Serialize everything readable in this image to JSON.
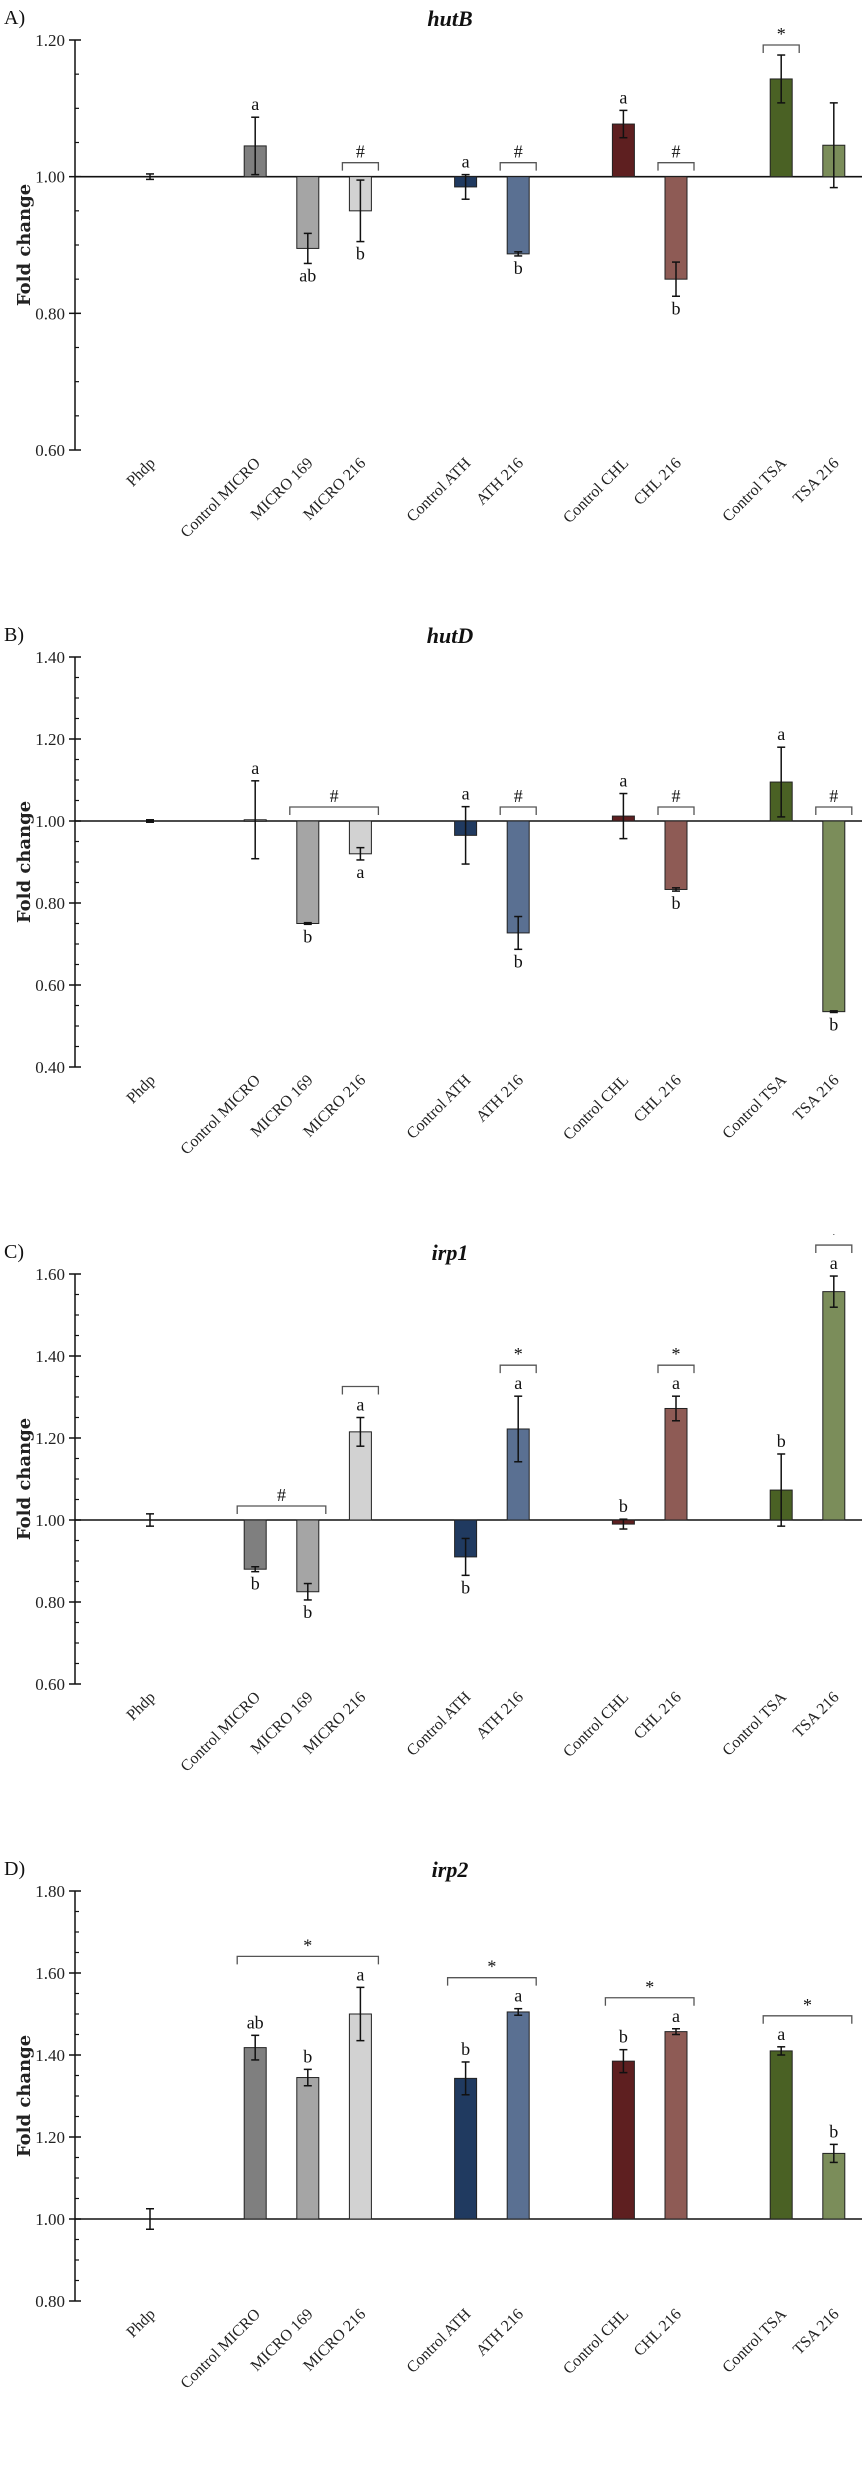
{
  "chart_data": [
    {
      "type": "bar",
      "panel_label": "A)",
      "title": "hutB",
      "ylabel": "Fold change",
      "xlabel": "",
      "ylim": [
        0.6,
        1.2
      ],
      "yticks": [
        "0.60",
        "0.80",
        "1.00",
        "1.20"
      ],
      "baseline": 1.0,
      "grid": false,
      "categories": [
        "Phdp",
        "Control MICRO",
        "MICRO 169",
        "MICRO 216",
        "Control ATH",
        "ATH 216",
        "Control CHL",
        "CHL 216",
        "Control TSA",
        "TSA 216"
      ],
      "values": [
        1.0,
        1.045,
        0.895,
        0.95,
        0.985,
        0.887,
        1.077,
        0.85,
        1.143,
        1.046
      ],
      "errors": [
        0.004,
        0.042,
        0.022,
        0.045,
        0.018,
        0.003,
        0.02,
        0.025,
        0.035,
        0.062
      ],
      "letters": [
        {
          "bar": 1,
          "text": "a",
          "pos": "above"
        },
        {
          "bar": 2,
          "text": "ab",
          "pos": "below"
        },
        {
          "bar": 3,
          "text": "b",
          "pos": "below"
        },
        {
          "bar": 4,
          "text": "a",
          "pos": "above"
        },
        {
          "bar": 5,
          "text": "b",
          "pos": "below"
        },
        {
          "bar": 6,
          "text": "a",
          "pos": "above"
        },
        {
          "bar": 7,
          "text": "b",
          "pos": "below"
        }
      ],
      "brackets": [
        {
          "from": 3,
          "to": 3,
          "symbol": "#"
        },
        {
          "from": 5,
          "to": 5,
          "symbol": "#"
        },
        {
          "from": 7,
          "to": 7,
          "symbol": "#"
        },
        {
          "from": 8,
          "to": 8,
          "symbol": "*"
        }
      ]
    },
    {
      "type": "bar",
      "panel_label": "B)",
      "title": "hutD",
      "ylabel": "Fold change",
      "xlabel": "",
      "ylim": [
        0.4,
        1.4
      ],
      "yticks": [
        "0.40",
        "0.60",
        "0.80",
        "1.00",
        "1.20",
        "1.40"
      ],
      "baseline": 1.0,
      "grid": false,
      "categories": [
        "Phdp",
        "Control MICRO",
        "MICRO 169",
        "MICRO 216",
        "Control ATH",
        "ATH 216",
        "Control CHL",
        "CHL 216",
        "Control TSA",
        "TSA 216"
      ],
      "values": [
        1.0,
        1.003,
        0.75,
        0.92,
        0.965,
        0.727,
        1.012,
        0.833,
        1.095,
        0.535
      ],
      "errors": [
        0.003,
        0.095,
        0.002,
        0.015,
        0.07,
        0.04,
        0.055,
        0.004,
        0.085,
        0.002
      ],
      "letters": [
        {
          "bar": 1,
          "text": "a",
          "pos": "above"
        },
        {
          "bar": 2,
          "text": "b",
          "pos": "below"
        },
        {
          "bar": 3,
          "text": "a",
          "pos": "below"
        },
        {
          "bar": 4,
          "text": "a",
          "pos": "above"
        },
        {
          "bar": 5,
          "text": "b",
          "pos": "below"
        },
        {
          "bar": 6,
          "text": "a",
          "pos": "above"
        },
        {
          "bar": 7,
          "text": "b",
          "pos": "below"
        },
        {
          "bar": 8,
          "text": "a",
          "pos": "above"
        },
        {
          "bar": 9,
          "text": "b",
          "pos": "below"
        }
      ],
      "brackets": [
        {
          "from": 2,
          "to": 3,
          "symbol": "#"
        },
        {
          "from": 5,
          "to": 5,
          "symbol": "#"
        },
        {
          "from": 7,
          "to": 7,
          "symbol": "#"
        },
        {
          "from": 9,
          "to": 9,
          "symbol": "#"
        }
      ]
    },
    {
      "type": "bar",
      "panel_label": "C)",
      "title": "irp1",
      "ylabel": "Fold change",
      "xlabel": "",
      "ylim": [
        0.6,
        1.6
      ],
      "yticks": [
        "0.60",
        "0.80",
        "1.00",
        "1.20",
        "1.40",
        "1.60"
      ],
      "baseline": 1.0,
      "grid": false,
      "categories": [
        "Phdp",
        "Control MICRO",
        "MICRO 169",
        "MICRO 216",
        "Control ATH",
        "ATH 216",
        "Control CHL",
        "CHL 216",
        "Control TSA",
        "TSA 216"
      ],
      "values": [
        1.0,
        0.88,
        0.825,
        1.215,
        0.91,
        1.222,
        0.99,
        1.272,
        1.073,
        1.557
      ],
      "errors": [
        0.015,
        0.006,
        0.02,
        0.035,
        0.045,
        0.08,
        0.012,
        0.03,
        0.088,
        0.038
      ],
      "letters": [
        {
          "bar": 1,
          "text": "b",
          "pos": "below"
        },
        {
          "bar": 2,
          "text": "b",
          "pos": "below"
        },
        {
          "bar": 3,
          "text": "a",
          "pos": "above"
        },
        {
          "bar": 4,
          "text": "b",
          "pos": "below"
        },
        {
          "bar": 5,
          "text": "a",
          "pos": "above"
        },
        {
          "bar": 6,
          "text": "b",
          "pos": "above"
        },
        {
          "bar": 7,
          "text": "a",
          "pos": "above"
        },
        {
          "bar": 8,
          "text": "b",
          "pos": "above"
        },
        {
          "bar": 9,
          "text": "a",
          "pos": "above"
        }
      ],
      "brackets": [
        {
          "from": 1,
          "to": 2,
          "symbol": "#"
        },
        {
          "from": 3,
          "to": 3,
          "symbol": ""
        },
        {
          "from": 5,
          "to": 5,
          "symbol": "*"
        },
        {
          "from": 7,
          "to": 7,
          "symbol": "*"
        },
        {
          "from": 9,
          "to": 9,
          "symbol": "*"
        }
      ]
    },
    {
      "type": "bar",
      "panel_label": "D)",
      "title": "irp2",
      "ylabel": "Fold change",
      "xlabel": "",
      "ylim": [
        0.8,
        1.8
      ],
      "yticks": [
        "0.80",
        "1.00",
        "1.20",
        "1.40",
        "1.60",
        "1.80"
      ],
      "baseline": 1.0,
      "grid": false,
      "categories": [
        "Phdp",
        "Control MICRO",
        "MICRO 169",
        "MICRO 216",
        "Control ATH",
        "ATH 216",
        "Control CHL",
        "CHL 216",
        "Control TSA",
        "TSA 216"
      ],
      "values": [
        1.0,
        1.418,
        1.345,
        1.5,
        1.343,
        1.505,
        1.385,
        1.457,
        1.41,
        1.16
      ],
      "errors": [
        0.025,
        0.03,
        0.02,
        0.065,
        0.04,
        0.008,
        0.028,
        0.007,
        0.01,
        0.022
      ],
      "letters": [
        {
          "bar": 1,
          "text": "ab",
          "pos": "above"
        },
        {
          "bar": 2,
          "text": "b",
          "pos": "above"
        },
        {
          "bar": 3,
          "text": "a",
          "pos": "above"
        },
        {
          "bar": 4,
          "text": "b",
          "pos": "above"
        },
        {
          "bar": 5,
          "text": "a",
          "pos": "above"
        },
        {
          "bar": 6,
          "text": "b",
          "pos": "above"
        },
        {
          "bar": 7,
          "text": "a",
          "pos": "above"
        },
        {
          "bar": 8,
          "text": "a",
          "pos": "above"
        },
        {
          "bar": 9,
          "text": "b",
          "pos": "above"
        }
      ],
      "brackets": [
        {
          "from": 1,
          "to": 3,
          "symbol": "*"
        },
        {
          "from": 4,
          "to": 5,
          "symbol": "*"
        },
        {
          "from": 6,
          "to": 7,
          "symbol": "*"
        },
        {
          "from": 8,
          "to": 9,
          "symbol": "*"
        }
      ]
    }
  ],
  "colors": {
    "Phdp": "#ffffff",
    "Control MICRO": "#7f7f7f",
    "MICRO 169": "#a5a5a5",
    "MICRO 216": "#d2d2d2",
    "Control ATH": "#203a60",
    "ATH 216": "#5a7092",
    "Control CHL": "#5e1f20",
    "CHL 216": "#8e5b55",
    "Control TSA": "#4a6124",
    "TSA 216": "#7b8d5a"
  }
}
